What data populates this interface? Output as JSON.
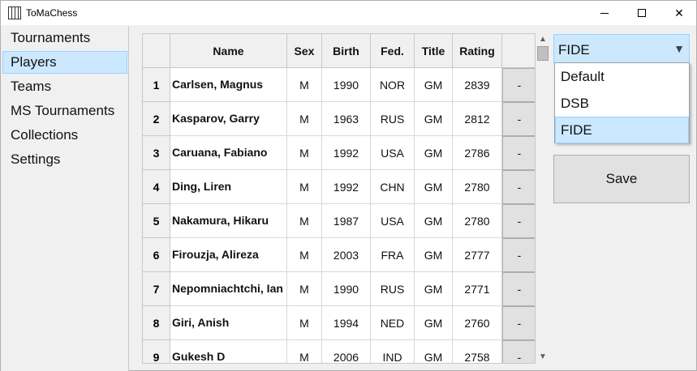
{
  "window": {
    "title": "ToMaChess"
  },
  "sidebar": {
    "items": [
      {
        "label": "Tournaments",
        "selected": false
      },
      {
        "label": "Players",
        "selected": true
      },
      {
        "label": "Teams",
        "selected": false
      },
      {
        "label": "MS Tournaments",
        "selected": false
      },
      {
        "label": "Collections",
        "selected": false
      },
      {
        "label": "Settings",
        "selected": false
      }
    ]
  },
  "table": {
    "columns": [
      "Name",
      "Sex",
      "Birth",
      "Fed.",
      "Title",
      "Rating"
    ],
    "rows": [
      {
        "num": "1",
        "name": "Carlsen, Magnus",
        "sex": "M",
        "birth": "1990",
        "fed": "NOR",
        "title": "GM",
        "rating": "2839",
        "action": "-"
      },
      {
        "num": "2",
        "name": "Kasparov, Garry",
        "sex": "M",
        "birth": "1963",
        "fed": "RUS",
        "title": "GM",
        "rating": "2812",
        "action": "-"
      },
      {
        "num": "3",
        "name": "Caruana, Fabiano",
        "sex": "M",
        "birth": "1992",
        "fed": "USA",
        "title": "GM",
        "rating": "2786",
        "action": "-"
      },
      {
        "num": "4",
        "name": "Ding, Liren",
        "sex": "M",
        "birth": "1992",
        "fed": "CHN",
        "title": "GM",
        "rating": "2780",
        "action": "-"
      },
      {
        "num": "5",
        "name": "Nakamura, Hikaru",
        "sex": "M",
        "birth": "1987",
        "fed": "USA",
        "title": "GM",
        "rating": "2780",
        "action": "-"
      },
      {
        "num": "6",
        "name": "Firouzja, Alireza",
        "sex": "M",
        "birth": "2003",
        "fed": "FRA",
        "title": "GM",
        "rating": "2777",
        "action": "-"
      },
      {
        "num": "7",
        "name": "Nepomniachtchi, Ian",
        "sex": "M",
        "birth": "1990",
        "fed": "RUS",
        "title": "GM",
        "rating": "2771",
        "action": "-"
      },
      {
        "num": "8",
        "name": "Giri, Anish",
        "sex": "M",
        "birth": "1994",
        "fed": "NED",
        "title": "GM",
        "rating": "2760",
        "action": "-"
      },
      {
        "num": "9",
        "name": "Gukesh D",
        "sex": "M",
        "birth": "2006",
        "fed": "IND",
        "title": "GM",
        "rating": "2758",
        "action": "-"
      }
    ]
  },
  "rating_list": {
    "selected": "FIDE",
    "options": [
      {
        "label": "Default",
        "selected": false
      },
      {
        "label": "DSB",
        "selected": false
      },
      {
        "label": "FIDE",
        "selected": true
      }
    ]
  },
  "save_label": "Save",
  "colors": {
    "selection": "#cce8ff",
    "selection_border": "#99d1ff"
  }
}
